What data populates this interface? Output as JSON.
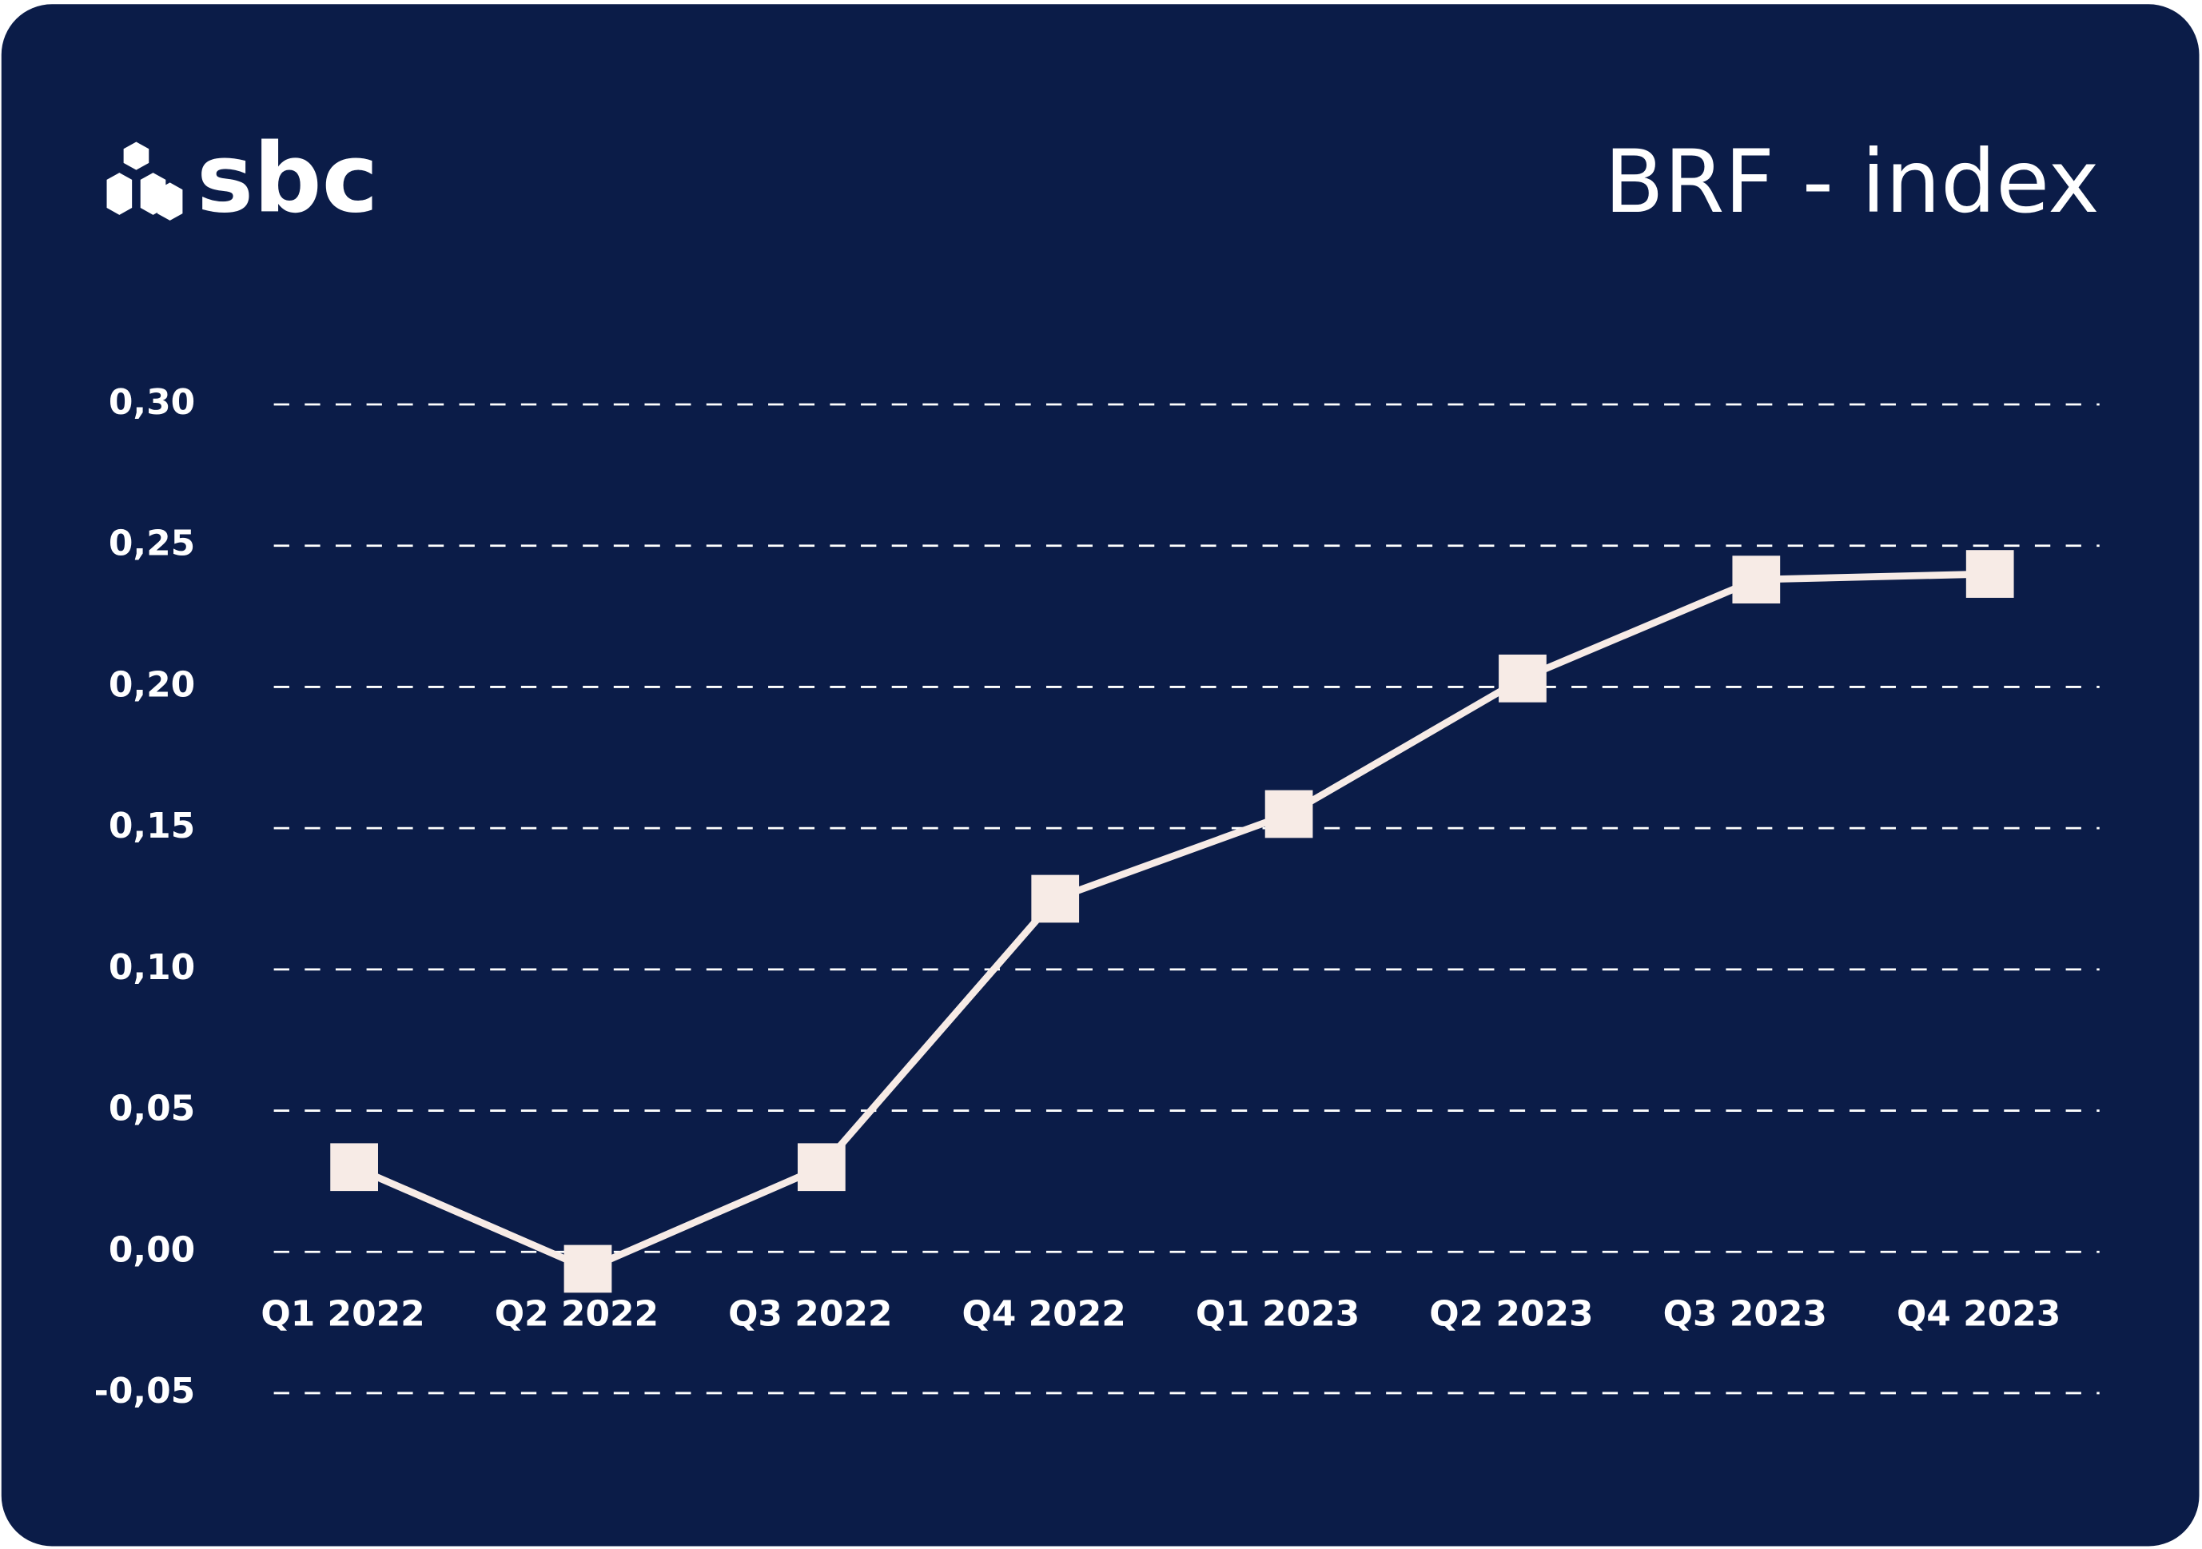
{
  "brand": "sbc",
  "chart_data": {
    "type": "line",
    "title": "BRF - index",
    "categories": [
      "Q1 2022",
      "Q2 2022",
      "Q3 2022",
      "Q4 2022",
      "Q1 2023",
      "Q2 2023",
      "Q3 2023",
      "Q4 2023"
    ],
    "series": [
      {
        "name": "BRF - index",
        "color": "#f7ebe6",
        "values": [
          0.03,
          -0.006,
          0.03,
          0.125,
          0.155,
          0.203,
          0.238,
          0.24
        ]
      }
    ],
    "ylim": [
      -0.05,
      0.3
    ],
    "yticks": [
      {
        "value": -0.05,
        "label": "-0,05"
      },
      {
        "value": 0,
        "label": "0,00"
      },
      {
        "value": 0.05,
        "label": "0,05"
      },
      {
        "value": 0.1,
        "label": "0,10"
      },
      {
        "value": 0.15,
        "label": "0,15"
      },
      {
        "value": 0.2,
        "label": "0,20"
      },
      {
        "value": 0.25,
        "label": "0,25"
      },
      {
        "value": 0.3,
        "label": "0,30"
      }
    ],
    "grid": true
  }
}
